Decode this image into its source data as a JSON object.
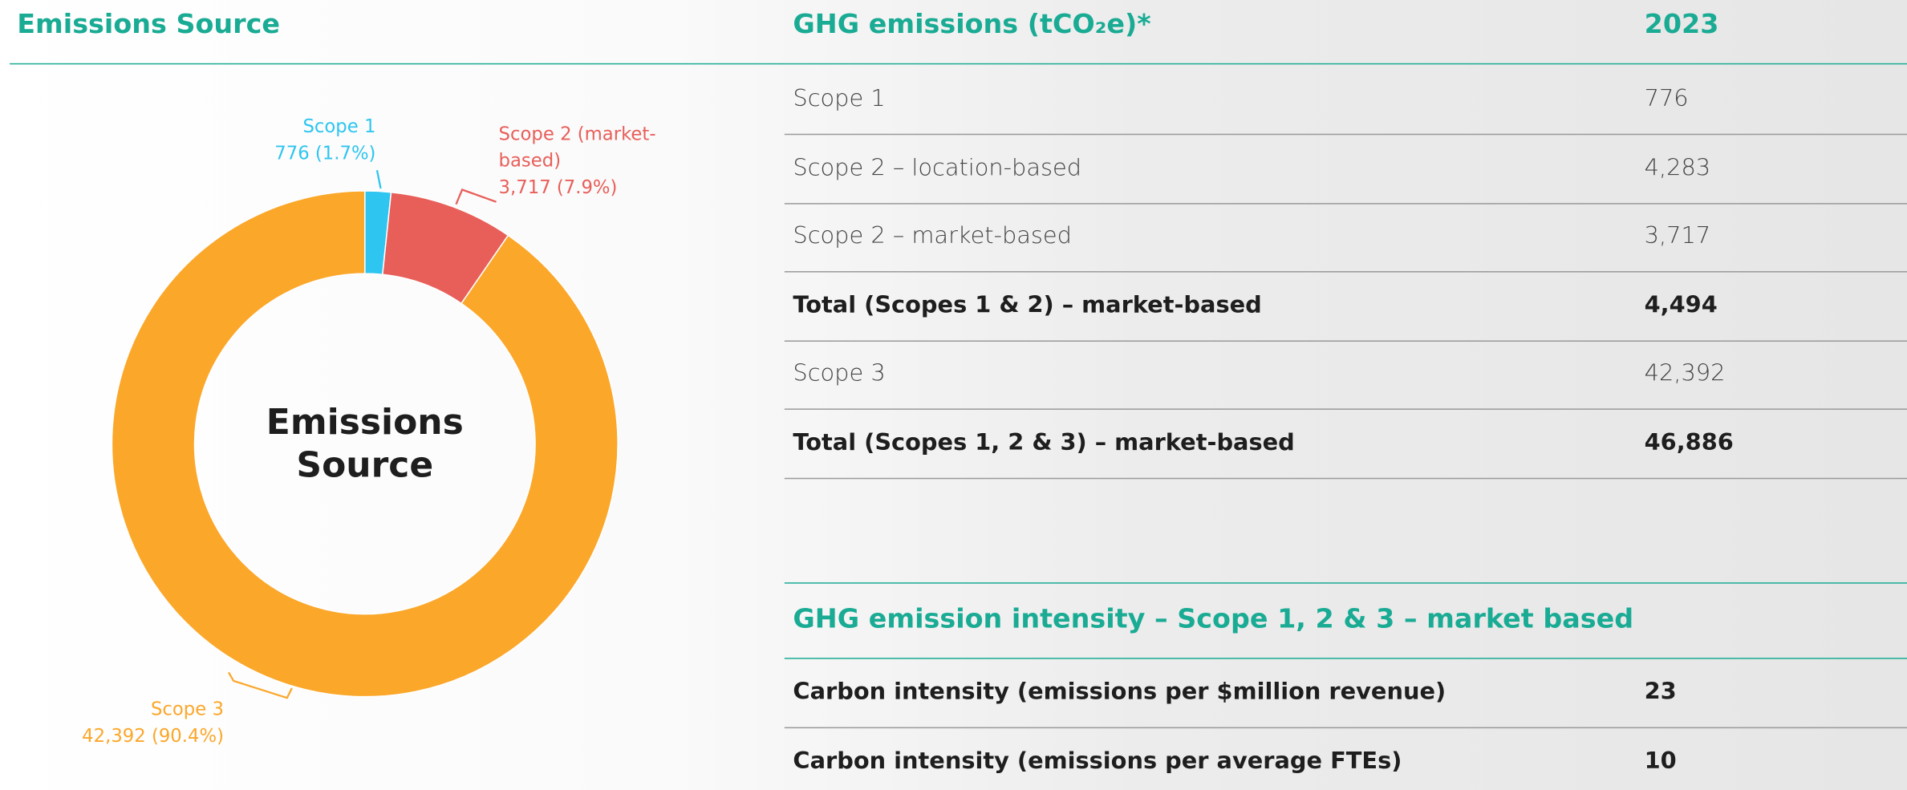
{
  "chart_data": {
    "type": "donut",
    "title": "Emissions Source",
    "center_label": "Emissions Source",
    "categories": [
      "Scope 1",
      "Scope 2 (market-based)",
      "Scope 3"
    ],
    "values": [
      776,
      3717,
      42392
    ],
    "value_labels": [
      "776 (1.7%)",
      "3,717 (7.9%)",
      "42,392 (90.4%)"
    ],
    "colors": [
      "#2ec5f0",
      "#e85f5a",
      "#fba72a"
    ]
  },
  "table": {
    "header": [
      "GHG emissions (tCO₂e)*",
      "2023"
    ],
    "rows": [
      [
        "Scope 1",
        "776"
      ],
      [
        "Scope 2 – location-based",
        "4,283"
      ],
      [
        "Scope 2 – market-based",
        "3,717"
      ],
      [
        "Total (Scopes 1 & 2) – market-based",
        "4,494"
      ],
      [
        "Scope 3",
        "42,392"
      ],
      [
        "Total (Scopes 1, 2 & 3) – market-based",
        "46,886"
      ]
    ],
    "bold_rows": [
      false,
      false,
      false,
      true,
      false,
      true
    ]
  },
  "intensity_table": {
    "title": "GHG emission intensity – Scope 1, 2 & 3 – market based",
    "rows": [
      [
        "Carbon intensity (emissions per $million revenue)",
        "23"
      ],
      [
        "Carbon intensity (emissions per average FTEs)",
        "10"
      ]
    ]
  }
}
